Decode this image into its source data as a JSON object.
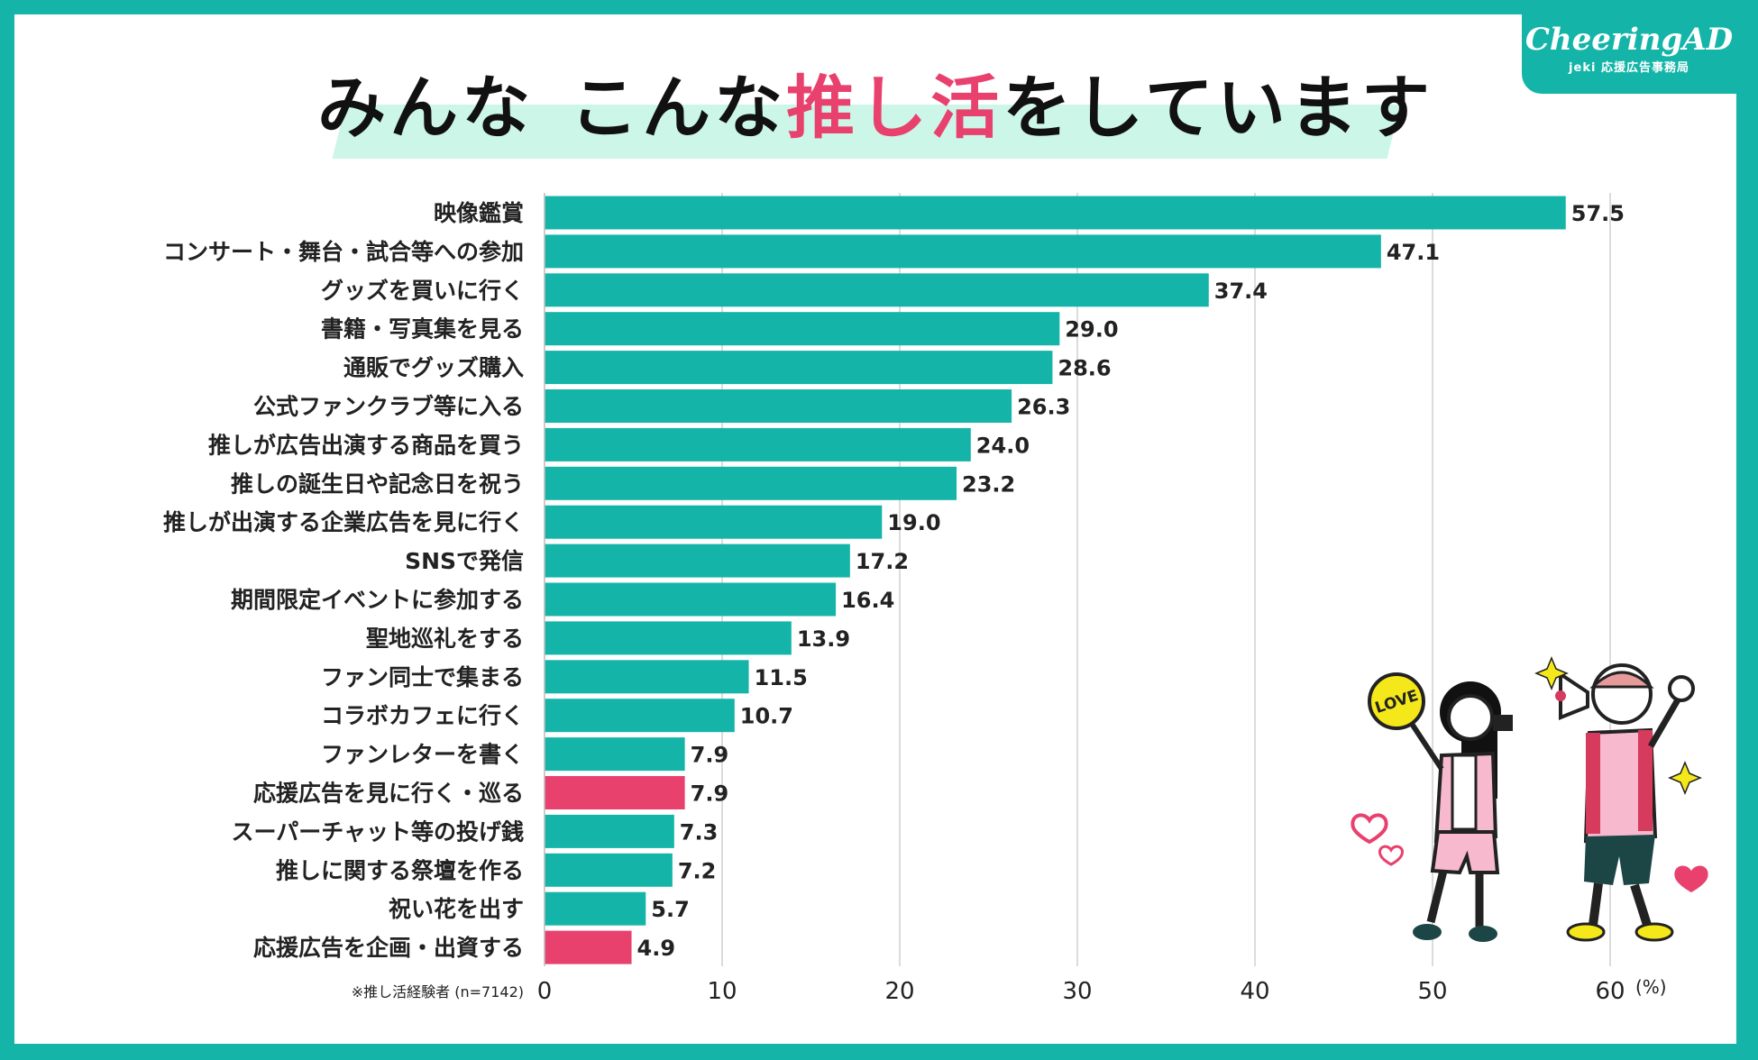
{
  "title": {
    "part1": "みんな",
    "part2": "こんな",
    "highlight": "推し活",
    "part3": "をしています"
  },
  "logo": {
    "main": "CheeringAD",
    "sub": "jeki 応援広告事務局"
  },
  "colors": {
    "frame": "#14b5a8",
    "bar": "#14b5a8",
    "bar_highlight": "#e8416e",
    "title_highlight": "#e8416e",
    "title_band": "#ccf6e8"
  },
  "chart_data": {
    "type": "bar",
    "orientation": "horizontal",
    "categories": [
      "映像鑑賞",
      "コンサート・舞台・試合等への参加",
      "グッズを買いに行く",
      "書籍・写真集を見る",
      "通販でグッズ購入",
      "公式ファンクラブ等に入る",
      "推しが広告出演する商品を買う",
      "推しの誕生日や記念日を祝う",
      "推しが出演する企業広告を見に行く",
      "SNSで発信",
      "期間限定イベントに参加する",
      "聖地巡礼をする",
      "ファン同士で集まる",
      "コラボカフェに行く",
      "ファンレターを書く",
      "応援広告を見に行く・巡る",
      "スーパーチャット等の投げ銭",
      "推しに関する祭壇を作る",
      "祝い花を出す",
      "応援広告を企画・出資する"
    ],
    "values": [
      57.5,
      47.1,
      37.4,
      29.0,
      28.6,
      26.3,
      24.0,
      23.2,
      19.0,
      17.2,
      16.4,
      13.9,
      11.5,
      10.7,
      7.9,
      7.9,
      7.3,
      7.2,
      5.7,
      4.9
    ],
    "value_labels": [
      "57.5",
      "47.1",
      "37.4",
      "29.0",
      "28.6",
      "26.3",
      "24.0",
      "23.2",
      "19.0",
      "17.2",
      "16.4",
      "13.9",
      "11.5",
      "10.7",
      "7.9",
      "7.9",
      "7.3",
      "7.2",
      "5.7",
      "4.9"
    ],
    "highlighted": [
      15,
      19
    ],
    "xlim": [
      0,
      60
    ],
    "xticks": [
      0,
      10,
      20,
      30,
      40,
      50,
      60
    ],
    "xunit": "(%)",
    "note": "※推し活経験者 (n=7142)",
    "grid": true
  },
  "illustration": {
    "sign_text": "LOVE"
  }
}
